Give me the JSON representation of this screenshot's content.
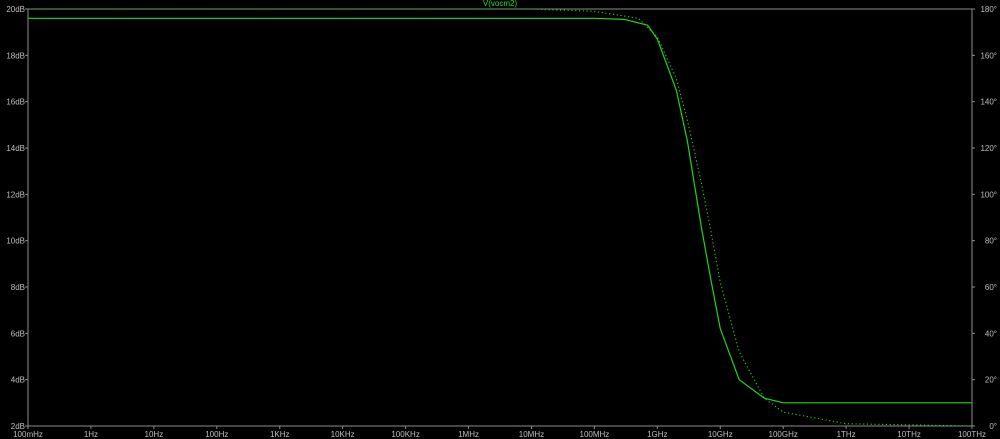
{
  "chart_data": {
    "type": "line",
    "trace_label": "V(vocm2)",
    "x_scale": "log",
    "x_ticks": [
      {
        "value": 0.1,
        "label": "100mHz"
      },
      {
        "value": 1,
        "label": "1Hz"
      },
      {
        "value": 10,
        "label": "10Hz"
      },
      {
        "value": 100,
        "label": "100Hz"
      },
      {
        "value": 1000,
        "label": "1KHz"
      },
      {
        "value": 10000,
        "label": "10KHz"
      },
      {
        "value": 100000,
        "label": "100KHz"
      },
      {
        "value": 1000000,
        "label": "1MHz"
      },
      {
        "value": 10000000,
        "label": "10MHz"
      },
      {
        "value": 100000000,
        "label": "100MHz"
      },
      {
        "value": 1000000000,
        "label": "1GHz"
      },
      {
        "value": 10000000000,
        "label": "10GHz"
      },
      {
        "value": 100000000000,
        "label": "100GHz"
      },
      {
        "value": 1000000000000,
        "label": "1THz"
      },
      {
        "value": 10000000000000,
        "label": "10THz"
      },
      {
        "value": 100000000000000,
        "label": "100THz"
      }
    ],
    "xlim": [
      0.1,
      100000000000000
    ],
    "y_left": {
      "lim": [
        2,
        20
      ],
      "ticks": [
        {
          "value": 20,
          "label": "20dB"
        },
        {
          "value": 18,
          "label": "18dB"
        },
        {
          "value": 16,
          "label": "16dB"
        },
        {
          "value": 14,
          "label": "14dB"
        },
        {
          "value": 12,
          "label": "12dB"
        },
        {
          "value": 10,
          "label": "10dB"
        },
        {
          "value": 8,
          "label": "8dB"
        },
        {
          "value": 6,
          "label": "6dB"
        },
        {
          "value": 4,
          "label": "4dB"
        },
        {
          "value": 2,
          "label": "2dB"
        }
      ]
    },
    "y_right": {
      "lim": [
        0,
        180
      ],
      "ticks": [
        {
          "value": 180,
          "label": "180°"
        },
        {
          "value": 160,
          "label": "160°"
        },
        {
          "value": 140,
          "label": "140°"
        },
        {
          "value": 120,
          "label": "120°"
        },
        {
          "value": 100,
          "label": "100°"
        },
        {
          "value": 80,
          "label": "80°"
        },
        {
          "value": 60,
          "label": "60°"
        },
        {
          "value": 40,
          "label": "40°"
        },
        {
          "value": 20,
          "label": "20°"
        },
        {
          "value": 0,
          "label": "0°"
        }
      ]
    },
    "series": [
      {
        "role": "magnitude",
        "axis": "left",
        "style": "solid",
        "x": [
          0.1,
          1000000,
          100000000,
          300000000,
          700000000,
          1000000000,
          2000000000,
          3000000000,
          5000000000,
          7000000000,
          10000000000,
          20000000000,
          50000000000,
          100000000000,
          100000000000000
        ],
        "y": [
          19.6,
          19.6,
          19.6,
          19.55,
          19.3,
          18.7,
          16.5,
          14.3,
          10.6,
          8.4,
          6.2,
          4.0,
          3.2,
          3.0,
          3.0
        ]
      },
      {
        "role": "phase",
        "axis": "right",
        "style": "dotted",
        "x": [
          0.1,
          10000000,
          100000000,
          500000000,
          1000000000,
          2000000000,
          3000000000,
          5000000000,
          7000000000,
          10000000000,
          20000000000,
          50000000000,
          100000000000,
          1000000000000,
          100000000000000
        ],
        "y": [
          180,
          180,
          179,
          176,
          168,
          150,
          132,
          105,
          85,
          62,
          32,
          12,
          6,
          1,
          0
        ]
      }
    ],
    "colors": {
      "background": "#000000",
      "trace": "#1fd61f",
      "axis": "#8c8c8c",
      "label": "#bfbfbf",
      "trace_label": "#22dd22"
    }
  }
}
